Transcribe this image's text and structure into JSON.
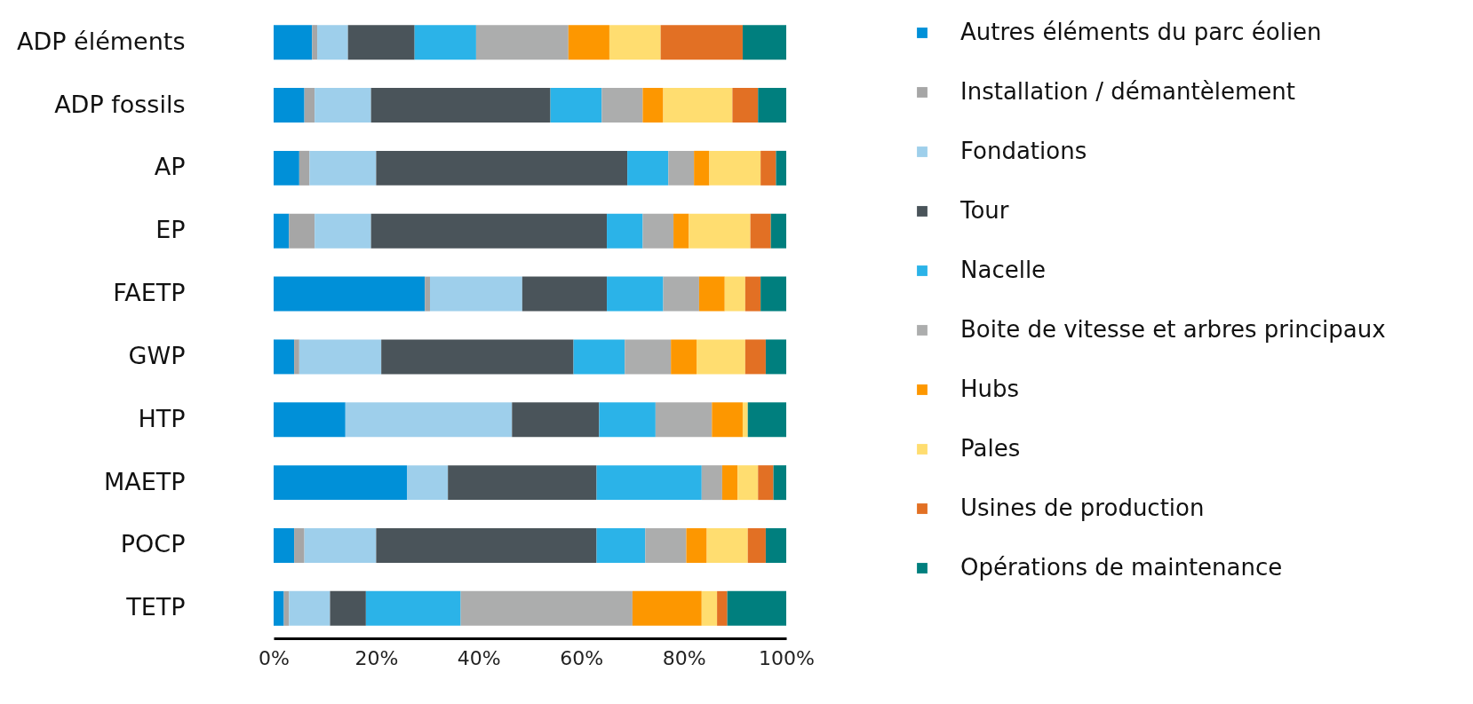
{
  "chart_data": {
    "type": "bar",
    "orientation": "horizontal",
    "stacked": true,
    "categories": [
      "ADP éléments",
      "ADP fossils",
      "AP",
      "EP",
      "FAETP",
      "GWP",
      "HTP",
      "MAETP",
      "POCP",
      "TETP"
    ],
    "series": [
      {
        "name": "Autres éléments du parc éolien",
        "color": "#0090d8",
        "values": [
          7.5,
          6,
          5,
          3,
          29.5,
          4,
          14,
          26,
          4,
          2
        ]
      },
      {
        "name": "Installation / démantèlement",
        "color": "#a6a6a6",
        "values": [
          1,
          2,
          2,
          5,
          1,
          1,
          0,
          0,
          2,
          1
        ]
      },
      {
        "name": "Fondations",
        "color": "#9ecfeb",
        "values": [
          6,
          11,
          13,
          11,
          18,
          16,
          32.5,
          8,
          14,
          8
        ]
      },
      {
        "name": "Tour",
        "color": "#4a545a",
        "values": [
          13,
          35,
          49,
          46,
          16.5,
          37.5,
          17,
          29,
          43,
          7
        ]
      },
      {
        "name": "Nacelle",
        "color": "#2bb3e8",
        "values": [
          12,
          10,
          8,
          7,
          11,
          10,
          11,
          20.5,
          9.5,
          18.5
        ]
      },
      {
        "name": "Boite de vitesse et arbres principaux",
        "color": "#acadad",
        "values": [
          18,
          8,
          5,
          6,
          7,
          9,
          11,
          4,
          8,
          33.5
        ]
      },
      {
        "name": "Hubs",
        "color": "#fd9700",
        "values": [
          8,
          4,
          3,
          3,
          5,
          5,
          6,
          3,
          4,
          13.5
        ]
      },
      {
        "name": "Pales",
        "color": "#ffdd70",
        "values": [
          10,
          13.5,
          10,
          12,
          4,
          9.5,
          1,
          4,
          8,
          3
        ]
      },
      {
        "name": "Usines de production",
        "color": "#e27024",
        "values": [
          16,
          5,
          3,
          4,
          3,
          4,
          0,
          3,
          3.5,
          2
        ]
      },
      {
        "name": "Opérations de maintenance",
        "color": "#007f7e",
        "values": [
          8.5,
          5.5,
          2,
          3,
          5,
          4,
          7.5,
          2.5,
          4,
          11.5
        ]
      }
    ],
    "xlim": [
      0,
      100
    ],
    "xticks": [
      {
        "value": 0,
        "label": "0%"
      },
      {
        "value": 20,
        "label": "20%"
      },
      {
        "value": 40,
        "label": "40%"
      },
      {
        "value": 60,
        "label": "60%"
      },
      {
        "value": 80,
        "label": "80%"
      },
      {
        "value": 100,
        "label": "100%"
      }
    ],
    "grid": false,
    "legend": "right"
  }
}
